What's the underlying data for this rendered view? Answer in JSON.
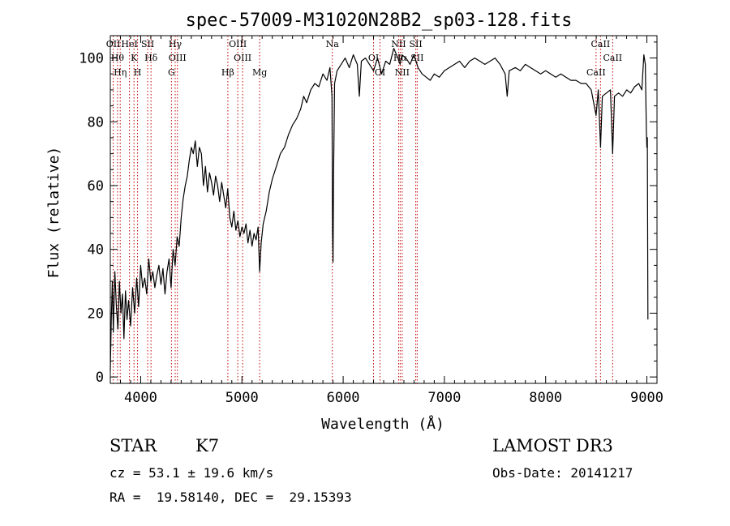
{
  "chart_data": {
    "type": "line",
    "title": "spec-57009-M31020N28B2_sp03-128.fits",
    "xlabel": "Wavelength (Å)",
    "ylabel": "Flux (relative)",
    "xlim": [
      3700,
      9100
    ],
    "ylim": [
      -2,
      107
    ],
    "x_ticks": [
      4000,
      5000,
      6000,
      7000,
      8000,
      9000
    ],
    "y_ticks": [
      0,
      20,
      40,
      60,
      80,
      100
    ],
    "grid": false,
    "series": [
      {
        "color": "#000000",
        "points": [
          [
            3700,
            2
          ],
          [
            3710,
            18
          ],
          [
            3720,
            30
          ],
          [
            3730,
            14
          ],
          [
            3745,
            33
          ],
          [
            3760,
            22
          ],
          [
            3775,
            15
          ],
          [
            3790,
            30
          ],
          [
            3805,
            20
          ],
          [
            3820,
            26
          ],
          [
            3835,
            12
          ],
          [
            3850,
            27
          ],
          [
            3865,
            18
          ],
          [
            3880,
            24
          ],
          [
            3900,
            16
          ],
          [
            3920,
            28
          ],
          [
            3940,
            20
          ],
          [
            3960,
            31
          ],
          [
            3980,
            22
          ],
          [
            4000,
            35
          ],
          [
            4020,
            28
          ],
          [
            4040,
            31
          ],
          [
            4060,
            26
          ],
          [
            4080,
            37
          ],
          [
            4100,
            30
          ],
          [
            4120,
            33
          ],
          [
            4140,
            28
          ],
          [
            4160,
            32
          ],
          [
            4180,
            35
          ],
          [
            4200,
            29
          ],
          [
            4220,
            34
          ],
          [
            4240,
            26
          ],
          [
            4260,
            33
          ],
          [
            4280,
            37
          ],
          [
            4300,
            28
          ],
          [
            4320,
            40
          ],
          [
            4340,
            35
          ],
          [
            4360,
            44
          ],
          [
            4380,
            41
          ],
          [
            4400,
            50
          ],
          [
            4420,
            56
          ],
          [
            4440,
            60
          ],
          [
            4460,
            63
          ],
          [
            4480,
            68
          ],
          [
            4500,
            72
          ],
          [
            4520,
            70
          ],
          [
            4540,
            74
          ],
          [
            4560,
            66
          ],
          [
            4580,
            72
          ],
          [
            4600,
            70
          ],
          [
            4620,
            60
          ],
          [
            4640,
            66
          ],
          [
            4660,
            58
          ],
          [
            4680,
            64
          ],
          [
            4700,
            61
          ],
          [
            4720,
            57
          ],
          [
            4740,
            63
          ],
          [
            4760,
            60
          ],
          [
            4780,
            55
          ],
          [
            4800,
            61
          ],
          [
            4820,
            57
          ],
          [
            4840,
            53
          ],
          [
            4860,
            59
          ],
          [
            4880,
            50
          ],
          [
            4900,
            47
          ],
          [
            4920,
            52
          ],
          [
            4940,
            46
          ],
          [
            4960,
            49
          ],
          [
            4980,
            44
          ],
          [
            5000,
            47
          ],
          [
            5020,
            45
          ],
          [
            5040,
            48
          ],
          [
            5060,
            42
          ],
          [
            5080,
            46
          ],
          [
            5100,
            41
          ],
          [
            5120,
            45
          ],
          [
            5140,
            43
          ],
          [
            5160,
            47
          ],
          [
            5175,
            33
          ],
          [
            5190,
            42
          ],
          [
            5210,
            48
          ],
          [
            5240,
            52
          ],
          [
            5270,
            58
          ],
          [
            5300,
            62
          ],
          [
            5340,
            66
          ],
          [
            5380,
            70
          ],
          [
            5420,
            72
          ],
          [
            5460,
            76
          ],
          [
            5500,
            79
          ],
          [
            5540,
            81
          ],
          [
            5580,
            84
          ],
          [
            5610,
            88
          ],
          [
            5640,
            86
          ],
          [
            5680,
            90
          ],
          [
            5720,
            92
          ],
          [
            5760,
            91
          ],
          [
            5800,
            95
          ],
          [
            5840,
            93
          ],
          [
            5870,
            97
          ],
          [
            5890,
            88
          ],
          [
            5895,
            45
          ],
          [
            5900,
            36
          ],
          [
            5905,
            62
          ],
          [
            5915,
            92
          ],
          [
            5940,
            96
          ],
          [
            5980,
            98
          ],
          [
            6020,
            100
          ],
          [
            6060,
            97
          ],
          [
            6100,
            101
          ],
          [
            6140,
            98
          ],
          [
            6160,
            88
          ],
          [
            6180,
            99
          ],
          [
            6220,
            100
          ],
          [
            6260,
            98
          ],
          [
            6300,
            96
          ],
          [
            6340,
            100
          ],
          [
            6380,
            95
          ],
          [
            6420,
            99
          ],
          [
            6460,
            98
          ],
          [
            6500,
            103
          ],
          [
            6540,
            100
          ],
          [
            6563,
            98
          ],
          [
            6580,
            101
          ],
          [
            6620,
            100
          ],
          [
            6660,
            98
          ],
          [
            6700,
            101
          ],
          [
            6740,
            97
          ],
          [
            6780,
            95
          ],
          [
            6820,
            94
          ],
          [
            6860,
            93
          ],
          [
            6900,
            95
          ],
          [
            6950,
            94
          ],
          [
            7000,
            96
          ],
          [
            7050,
            97
          ],
          [
            7100,
            98
          ],
          [
            7150,
            99
          ],
          [
            7200,
            97
          ],
          [
            7250,
            99
          ],
          [
            7300,
            100
          ],
          [
            7350,
            99
          ],
          [
            7400,
            98
          ],
          [
            7450,
            99
          ],
          [
            7500,
            100
          ],
          [
            7550,
            98
          ],
          [
            7600,
            95
          ],
          [
            7620,
            88
          ],
          [
            7640,
            96
          ],
          [
            7700,
            97
          ],
          [
            7750,
            96
          ],
          [
            7800,
            98
          ],
          [
            7850,
            97
          ],
          [
            7900,
            96
          ],
          [
            7950,
            95
          ],
          [
            8000,
            96
          ],
          [
            8050,
            95
          ],
          [
            8100,
            94
          ],
          [
            8150,
            95
          ],
          [
            8200,
            94
          ],
          [
            8250,
            93
          ],
          [
            8300,
            93
          ],
          [
            8350,
            92
          ],
          [
            8400,
            92
          ],
          [
            8450,
            90
          ],
          [
            8498,
            82
          ],
          [
            8520,
            90
          ],
          [
            8542,
            72
          ],
          [
            8560,
            88
          ],
          [
            8600,
            89
          ],
          [
            8640,
            90
          ],
          [
            8662,
            70
          ],
          [
            8680,
            88
          ],
          [
            8720,
            89
          ],
          [
            8760,
            88
          ],
          [
            8800,
            90
          ],
          [
            8840,
            89
          ],
          [
            8880,
            91
          ],
          [
            8920,
            92
          ],
          [
            8950,
            90
          ],
          [
            8970,
            101
          ],
          [
            8985,
            98
          ],
          [
            8995,
            77
          ],
          [
            9000,
            72
          ],
          [
            9005,
            75
          ],
          [
            9010,
            18
          ]
        ]
      }
    ],
    "line_markers": [
      {
        "wave": 3729,
        "labels": [
          "OII"
        ]
      },
      {
        "wave": 3771,
        "labels": [
          "Hθ"
        ]
      },
      {
        "wave": 3798,
        "labels": [
          "Hη"
        ]
      },
      {
        "wave": 3889,
        "labels": [
          "HeI"
        ]
      },
      {
        "wave": 3934,
        "labels": [
          "K"
        ]
      },
      {
        "wave": 3969,
        "labels": [
          "H"
        ]
      },
      {
        "wave": 4069,
        "labels": [
          "SII"
        ]
      },
      {
        "wave": 4102,
        "labels": [
          "Hδ"
        ]
      },
      {
        "wave": 4304,
        "labels": [
          "G"
        ]
      },
      {
        "wave": 4341,
        "labels": [
          "Hγ"
        ]
      },
      {
        "wave": 4363,
        "labels": [
          "OIII"
        ]
      },
      {
        "wave": 4861,
        "labels": [
          "Hβ"
        ]
      },
      {
        "wave": 4959,
        "labels": [
          "OIII"
        ]
      },
      {
        "wave": 5007,
        "labels": [
          "OIII"
        ]
      },
      {
        "wave": 5175,
        "labels": [
          "Mg"
        ]
      },
      {
        "wave": 5893,
        "labels": [
          "Na"
        ]
      },
      {
        "wave": 6300,
        "labels": [
          "OI"
        ]
      },
      {
        "wave": 6364,
        "labels": [
          "OI"
        ]
      },
      {
        "wave": 6548,
        "labels": [
          "NII"
        ]
      },
      {
        "wave": 6563,
        "labels": [
          "Hα"
        ]
      },
      {
        "wave": 6583,
        "labels": [
          "NII"
        ]
      },
      {
        "wave": 6717,
        "labels": [
          "SII"
        ]
      },
      {
        "wave": 6731,
        "labels": [
          "SII"
        ]
      },
      {
        "wave": 8498,
        "labels": [
          "CaII"
        ]
      },
      {
        "wave": 8542,
        "labels": [
          "CaII"
        ]
      },
      {
        "wave": 8662,
        "labels": [
          "CaII"
        ]
      }
    ]
  },
  "info": {
    "object_class": "STAR",
    "subclass": "K7",
    "survey": "LAMOST DR3",
    "cz": "cz = 53.1 ± 19.6 km/s",
    "obs_date": "Obs-Date: 20141217",
    "coords": "RA =  19.58140, DEC =  29.15393"
  },
  "colors": {
    "spectrum": "#000000",
    "line_marker": "#c00000",
    "text": "#000000"
  }
}
